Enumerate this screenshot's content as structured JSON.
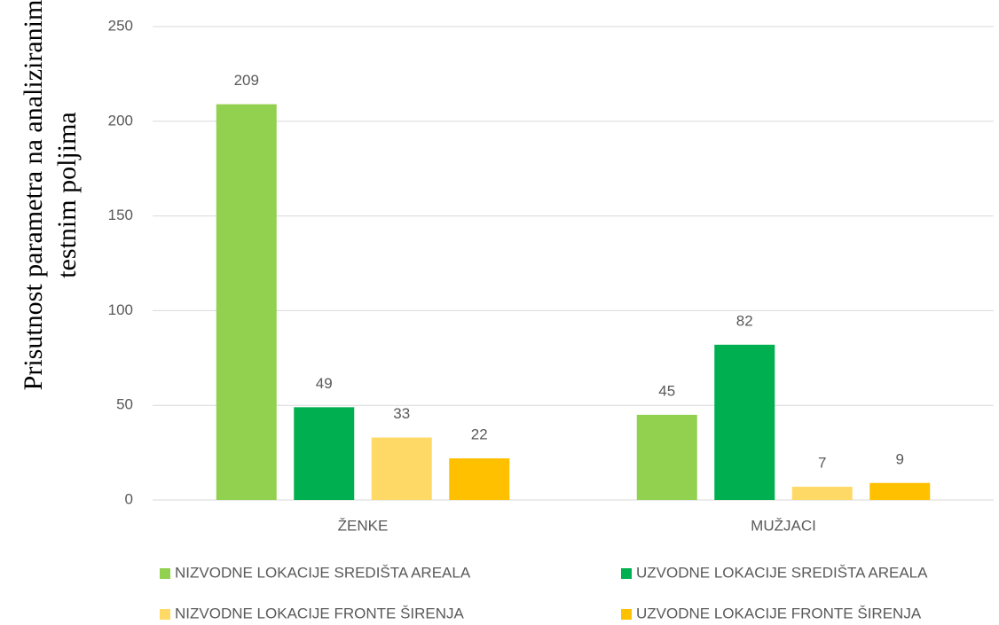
{
  "chart_data": {
    "type": "bar",
    "ylabel": [
      "Prisutnost parametra na analiziranim",
      "testnim poljima"
    ],
    "categories": [
      "ŽENKE",
      "MUŽJACI"
    ],
    "series": [
      {
        "name": "NIZVODNE LOKACIJE SREDIŠTA AREALA",
        "color": "#92d050",
        "values": [
          209,
          45
        ]
      },
      {
        "name": "UZVODNE LOKACIJE SREDIŠTA AREALA",
        "color": "#00b050",
        "values": [
          49,
          82
        ]
      },
      {
        "name": "NIZVODNE LOKACIJE FRONTE ŠIRENJA",
        "color": "#ffd966",
        "values": [
          33,
          7
        ]
      },
      {
        "name": "UZVODNE LOKACIJE FRONTE ŠIRENJA",
        "color": "#ffc000",
        "values": [
          22,
          9
        ]
      }
    ],
    "ylim": [
      0,
      250
    ],
    "yticks": [
      0,
      50,
      100,
      150,
      200,
      250
    ],
    "grid": true,
    "legend": "bottom"
  }
}
